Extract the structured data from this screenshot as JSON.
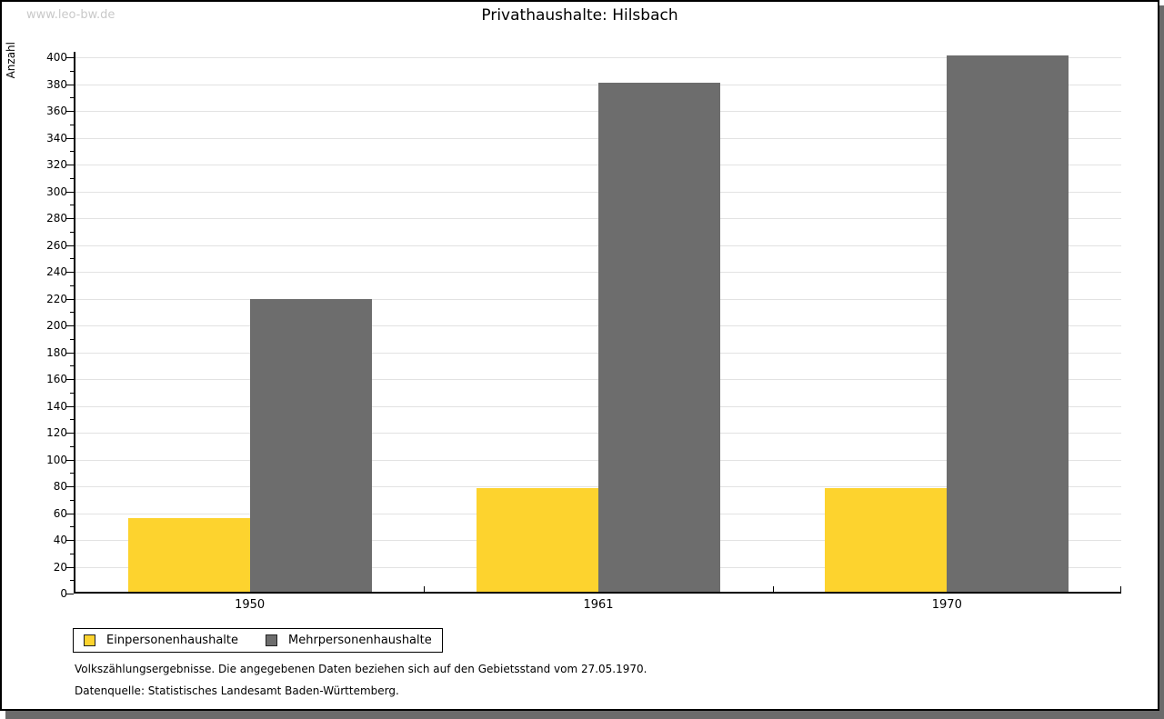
{
  "watermark": "www.leo-bw.de",
  "title": "Privathaushalte: Hilsbach",
  "chart_data": {
    "type": "bar",
    "title": "Privathaushalte: Hilsbach",
    "xlabel": "",
    "ylabel": "Anzahl",
    "categories": [
      "1950",
      "1961",
      "1970"
    ],
    "series": [
      {
        "name": "Einpersonenhaushalte",
        "color": "#fdd32e",
        "values": [
          55,
          77,
          77
        ]
      },
      {
        "name": "Mehrpersonenhaushalte",
        "color": "#6d6d6d",
        "values": [
          218,
          380,
          400
        ]
      }
    ],
    "ylim": [
      0,
      400
    ],
    "yticks": [
      0,
      20,
      40,
      60,
      80,
      100,
      120,
      140,
      160,
      180,
      200,
      220,
      240,
      260,
      280,
      300,
      320,
      340,
      360,
      380,
      400
    ],
    "minor_tick_step": 10,
    "grid": true,
    "gridline_color": "#e2e2e2",
    "legend_position": "bottom-left"
  },
  "footer": {
    "line1": "Volkszählungsergebnisse. Die angegebenen Daten beziehen sich auf den Gebietsstand vom 27.05.1970.",
    "line2": "Datenquelle: Statistisches Landesamt Baden-Württemberg."
  }
}
